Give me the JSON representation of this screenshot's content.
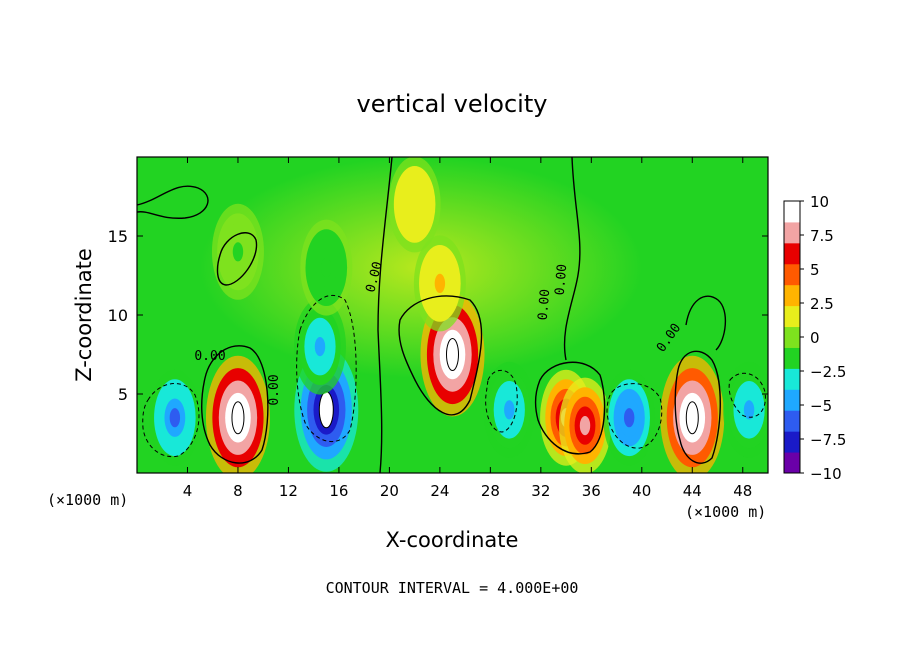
{
  "chart_data": {
    "type": "heatmap",
    "title": "vertical velocity",
    "xlabel": "X-coordinate",
    "ylabel": "Z-coordinate",
    "x_unit_left": "(×1000 m)",
    "x_unit_right": "(×1000 m)",
    "footer": "CONTOUR INTERVAL = 4.000E+00",
    "xlim": [
      0,
      50
    ],
    "ylim": [
      0,
      20
    ],
    "x_ticks": [
      4,
      8,
      12,
      16,
      20,
      24,
      28,
      32,
      36,
      40,
      44,
      48
    ],
    "y_ticks": [
      5,
      10,
      15
    ],
    "colorbar": {
      "ticks": [
        "10",
        "7.5",
        "5",
        "2.5",
        "0",
        "−2.5",
        "−5",
        "−7.5",
        "−10"
      ],
      "range": [
        -10,
        10
      ],
      "colors": [
        "#6a00a8",
        "#1a1ac8",
        "#2e5cf0",
        "#1fa8ff",
        "#18e8d8",
        "#22d322",
        "#7ee21e",
        "#e8ee1c",
        "#ffb400",
        "#ff5a00",
        "#e80000",
        "#f2a4a4",
        "#ffffff"
      ]
    },
    "contour_labels": [
      "0.00",
      "0.00",
      "0.00",
      "0.00",
      "0.00",
      "0.00"
    ],
    "cells": [
      {
        "x": 3,
        "z": 3.5,
        "w": -6
      },
      {
        "x": 8,
        "z": 3.5,
        "w": 14
      },
      {
        "x": 15,
        "z": 4,
        "w": -11
      },
      {
        "x": 14.5,
        "z": 8,
        "w": -5
      },
      {
        "x": 25,
        "z": 7.5,
        "w": 14
      },
      {
        "x": 24,
        "z": 12,
        "w": 3
      },
      {
        "x": 29.5,
        "z": 4,
        "w": -5
      },
      {
        "x": 34,
        "z": 3.5,
        "w": 8
      },
      {
        "x": 35.5,
        "z": 3,
        "w": 8
      },
      {
        "x": 39,
        "z": 3.5,
        "w": -7
      },
      {
        "x": 44,
        "z": 3.5,
        "w": 13
      },
      {
        "x": 48.5,
        "z": 4,
        "w": -5
      },
      {
        "x": 15,
        "z": 13,
        "w": -2
      },
      {
        "x": 8,
        "z": 14,
        "w": -1
      },
      {
        "x": 22,
        "z": 17,
        "w": 2
      }
    ]
  }
}
